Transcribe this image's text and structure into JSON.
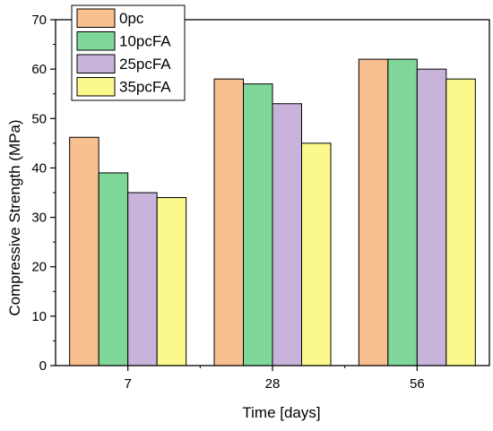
{
  "chart_data": {
    "type": "bar",
    "title": "",
    "xlabel": "Time [days]",
    "ylabel": "Compressive Strength (MPa)",
    "categories": [
      "7",
      "28",
      "56"
    ],
    "ylim": [
      0,
      70
    ],
    "yticks": [
      0,
      10,
      20,
      30,
      40,
      50,
      60,
      70
    ],
    "grid": false,
    "legend_position": "top-left",
    "series": [
      {
        "name": "0pc",
        "values": [
          46.2,
          58,
          62
        ],
        "color": "#F9C08F"
      },
      {
        "name": "10pcFA",
        "values": [
          39,
          57,
          62
        ],
        "color": "#7FD899"
      },
      {
        "name": "25pcFA",
        "values": [
          35,
          53,
          60
        ],
        "color": "#C8B3DB"
      },
      {
        "name": "35pcFA",
        "values": [
          34,
          45,
          58
        ],
        "color": "#FBF98B"
      }
    ]
  }
}
